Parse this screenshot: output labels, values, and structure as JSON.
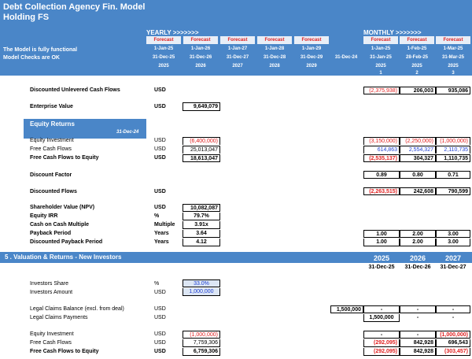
{
  "header": {
    "title_line1": "Debt Collection Agency Fin. Model",
    "title_line2": "Holding FS",
    "note_line1": "The Model is fully functional",
    "note_line2": "Model Checks are OK",
    "yearly_label": "YEARLY >>>>>>>",
    "monthly_label": "MONTHLY >>>>>>>"
  },
  "yearly_cols": [
    {
      "tag": "Forecast",
      "start": "1-Jan-25",
      "end": "31-Dec-25",
      "year": "2025"
    },
    {
      "tag": "Forecast",
      "start": "1-Jan-26",
      "end": "31-Dec-26",
      "year": "2026"
    },
    {
      "tag": "Forecast",
      "start": "1-Jan-27",
      "end": "31-Dec-27",
      "year": "2027"
    },
    {
      "tag": "Forecast",
      "start": "1-Jan-28",
      "end": "31-Dec-28",
      "year": "2028"
    },
    {
      "tag": "Forecast",
      "start": "1-Jan-29",
      "end": "31-Dec-29",
      "year": "2029"
    }
  ],
  "mid_col": {
    "end": "31-Dec-24"
  },
  "monthly_cols": [
    {
      "tag": "Forecast",
      "start": "1-Jan-25",
      "end": "31-Jan-25",
      "year": "2025",
      "idx": "1"
    },
    {
      "tag": "Forecast",
      "start": "1-Feb-25",
      "end": "28-Feb-25",
      "year": "2025",
      "idx": "2"
    },
    {
      "tag": "Forecast",
      "start": "1-Mar-25",
      "end": "31-Mar-25",
      "year": "2025",
      "idx": "3"
    }
  ],
  "rows": {
    "ducf": {
      "label": "Discounted Unlevered Cash Flows",
      "unit": "USD",
      "m": [
        "(2,375,938)",
        "206,003",
        "935,086"
      ]
    },
    "ev": {
      "label": "Enterprise Value",
      "unit": "USD",
      "value": "9,649,079"
    },
    "equity_section": {
      "label": "Equity Returns",
      "date": "31-Dec-24"
    },
    "eq_inv": {
      "label": "Equity Investment",
      "unit": "USD",
      "value": "(6,400,000)",
      "m": [
        "(3,150,000)",
        "(2,250,000)",
        "(1,000,000)"
      ]
    },
    "fcf": {
      "label": "Free Cash Flows",
      "unit": "USD",
      "value": "25,013,047",
      "m": [
        "614,863",
        "2,554,327",
        "2,110,735"
      ]
    },
    "fcfe": {
      "label": "Free Cash Flows to Equity",
      "unit": "USD",
      "value": "18,613,047",
      "m": [
        "(2,535,137)",
        "304,327",
        "1,110,735"
      ]
    },
    "dfactor": {
      "label": "Discount Factor",
      "m": [
        "0.89",
        "0.80",
        "0.71"
      ]
    },
    "dflows": {
      "label": "Discounted Flows",
      "unit": "USD",
      "m": [
        "(2,263,515)",
        "242,608",
        "790,599"
      ]
    },
    "npv": {
      "label": "Shareholder Value (NPV)",
      "unit": "USD",
      "value": "10,082,087"
    },
    "irr": {
      "label": "Equity IRR",
      "unit": "%",
      "value": "79.7%"
    },
    "coc": {
      "label": "Cash on Cash Multiple",
      "unit": "Multiple",
      "value": "3.91x"
    },
    "payback": {
      "label": "Payback Period",
      "unit": "Years",
      "value": "3.64",
      "m": [
        "1.00",
        "2.00",
        "3.00"
      ]
    },
    "dpayback": {
      "label": "Discounted Payback Period",
      "unit": "Years",
      "value": "4.12",
      "m": [
        "1.00",
        "2.00",
        "3.00"
      ]
    }
  },
  "section5": {
    "title": "5 . Valuation & Returns - New Investors",
    "years": [
      "2025",
      "2026",
      "2027"
    ],
    "dates": [
      "31-Dec-25",
      "31-Dec-26",
      "31-Dec-27"
    ],
    "inv_share": {
      "label": "Investors Share",
      "unit": "%",
      "value": "33.0%"
    },
    "inv_amount": {
      "label": "Investors Amount",
      "unit": "USD",
      "value": "1,000,000"
    },
    "legal_bal": {
      "label": "Legal Claims Balance (excl. from deal)",
      "unit": "USD",
      "mid": "1,500,000",
      "m": [
        "-",
        "-",
        "-"
      ]
    },
    "legal_pay": {
      "label": "Legal Claims Payments",
      "unit": "USD",
      "m": [
        "1,500,000",
        "-",
        "-"
      ]
    },
    "eq_inv": {
      "label": "Equity Investment",
      "unit": "USD",
      "value": "(1,000,000)",
      "m": [
        "-",
        "-",
        "(1,000,000)"
      ]
    },
    "fcf": {
      "label": "Free Cash Flows",
      "unit": "USD",
      "value": "7,759,306",
      "m": [
        "(292,095)",
        "842,928",
        "696,543"
      ]
    },
    "fcfe": {
      "label": "Free Cash Flows to Equity",
      "unit": "USD",
      "value": "6,759,306",
      "m": [
        "(292,095)",
        "842,928",
        "(303,457)"
      ]
    }
  }
}
